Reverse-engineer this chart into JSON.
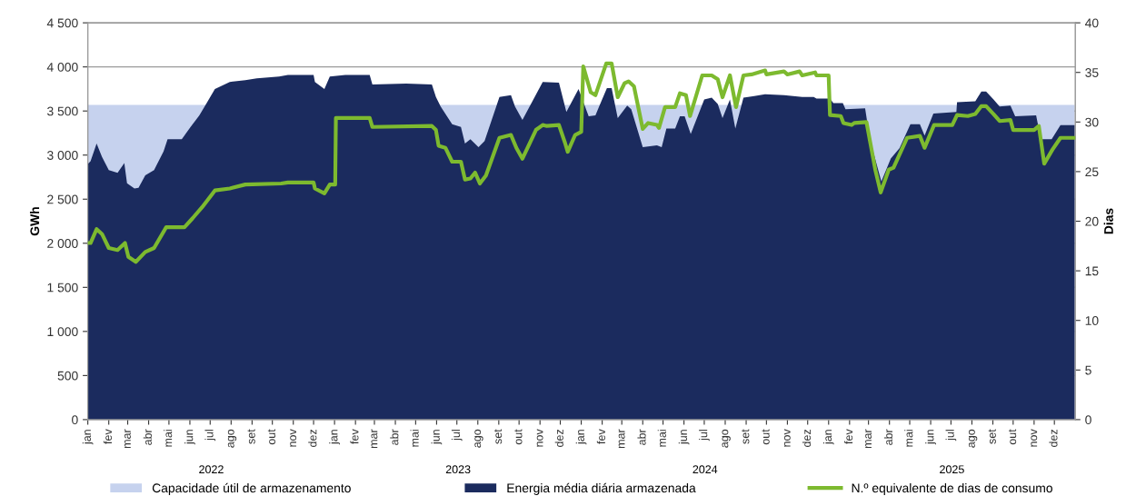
{
  "chart_data": {
    "type": "area",
    "ylabel": "GWh",
    "y2label": "Dias",
    "ylim": [
      0,
      4500
    ],
    "yticks": [
      0,
      {
        "value": 500,
        "label": "500"
      },
      {
        "value": 1000,
        "label": "1 000"
      },
      {
        "value": 1500,
        "label": "1 500"
      },
      {
        "value": 2000,
        "label": "2 000"
      },
      {
        "value": 2500,
        "label": "2 500"
      },
      {
        "value": 3000,
        "label": "3 000"
      },
      {
        "value": 3500,
        "label": "3 500"
      },
      {
        "value": 4000,
        "label": "4 000"
      },
      {
        "value": 4500,
        "label": "4 500"
      }
    ],
    "y2lim": [
      0,
      40
    ],
    "y2ticks": [
      0,
      5,
      10,
      15,
      20,
      25,
      30,
      35,
      40
    ],
    "xlim": [
      "2022-01-01",
      "2026-01-01"
    ],
    "xticks": [
      {
        "value": "2022-01-01",
        "label": "jan"
      },
      {
        "value": "2022-02-01",
        "label": "fev"
      },
      {
        "value": "2022-03-01",
        "label": "mar"
      },
      {
        "value": "2022-04-01",
        "label": "abr"
      },
      {
        "value": "2022-05-01",
        "label": "mai"
      },
      {
        "value": "2022-06-01",
        "label": "jun"
      },
      {
        "value": "2022-07-01",
        "label": "jul"
      },
      {
        "value": "2022-08-01",
        "label": "ago"
      },
      {
        "value": "2022-09-01",
        "label": "set"
      },
      {
        "value": "2022-10-01",
        "label": "out"
      },
      {
        "value": "2022-11-01",
        "label": "nov"
      },
      {
        "value": "2022-12-01",
        "label": "dez"
      },
      {
        "value": "2023-01-01",
        "label": "jan"
      },
      {
        "value": "2023-02-01",
        "label": "fev"
      },
      {
        "value": "2023-03-01",
        "label": "mar"
      },
      {
        "value": "2023-04-01",
        "label": "abr"
      },
      {
        "value": "2023-05-01",
        "label": "mai"
      },
      {
        "value": "2023-06-01",
        "label": "jun"
      },
      {
        "value": "2023-07-01",
        "label": "jul"
      },
      {
        "value": "2023-08-01",
        "label": "ago"
      },
      {
        "value": "2023-09-01",
        "label": "set"
      },
      {
        "value": "2023-10-01",
        "label": "out"
      },
      {
        "value": "2023-11-01",
        "label": "nov"
      },
      {
        "value": "2023-12-01",
        "label": "dez"
      },
      {
        "value": "2024-01-01",
        "label": "jan"
      },
      {
        "value": "2024-02-01",
        "label": "fev"
      },
      {
        "value": "2024-03-01",
        "label": "mar"
      },
      {
        "value": "2024-04-01",
        "label": "abr"
      },
      {
        "value": "2024-05-01",
        "label": "mai"
      },
      {
        "value": "2024-06-01",
        "label": "jun"
      },
      {
        "value": "2024-07-01",
        "label": "jul"
      },
      {
        "value": "2024-08-01",
        "label": "ago"
      },
      {
        "value": "2024-09-01",
        "label": "set"
      },
      {
        "value": "2024-10-01",
        "label": "out"
      },
      {
        "value": "2024-11-01",
        "label": "nov"
      },
      {
        "value": "2024-12-01",
        "label": "dez"
      },
      {
        "value": "2025-01-01",
        "label": "jan"
      },
      {
        "value": "2025-02-01",
        "label": "fev"
      },
      {
        "value": "2025-03-01",
        "label": "mar"
      },
      {
        "value": "2025-04-01",
        "label": "abr"
      },
      {
        "value": "2025-05-01",
        "label": "mai"
      },
      {
        "value": "2025-06-01",
        "label": "jun"
      },
      {
        "value": "2025-07-01",
        "label": "jul"
      },
      {
        "value": "2025-08-01",
        "label": "ago"
      },
      {
        "value": "2025-09-01",
        "label": "set"
      },
      {
        "value": "2025-10-01",
        "label": "out"
      },
      {
        "value": "2025-11-01",
        "label": "nov"
      },
      {
        "value": "2025-12-01",
        "label": "dez"
      }
    ],
    "annotations": [
      "2022",
      "2023",
      "2024",
      "2025"
    ],
    "grid": "y",
    "legend": "bottom",
    "series": [
      {
        "name": "Capacidade útil de armazenamento",
        "color": "#c6d2ee",
        "x": [
          "2022-01-01",
          "2025-12-31"
        ],
        "values": [
          3570,
          3570
        ]
      },
      {
        "name": "Energia média diária armazenada",
        "color": "#1b2b5e",
        "x": [
          "2022-01-01",
          "2022-01-05",
          "2022-01-14",
          "2022-01-22",
          "2022-02-01",
          "2022-02-14",
          "2022-02-24",
          "2022-02-28",
          "2022-03-11",
          "2022-03-17",
          "2022-03-27",
          "2022-04-09",
          "2022-04-23",
          "2022-04-29",
          "2022-05-20",
          "2022-06-02",
          "2022-06-15",
          "2022-06-25",
          "2022-07-08",
          "2022-07-30",
          "2022-08-22",
          "2022-09-08",
          "2022-10-11",
          "2022-10-24",
          "2022-12-01",
          "2022-12-03",
          "2022-12-17",
          "2022-12-25",
          "2023-01-17",
          "2023-02-22",
          "2023-02-26",
          "2023-04-17",
          "2023-05-25",
          "2023-05-31",
          "2023-06-07",
          "2023-06-24",
          "2023-07-07",
          "2023-07-13",
          "2023-07-21",
          "2023-08-02",
          "2023-08-11",
          "2023-09-02",
          "2023-09-19",
          "2023-09-25",
          "2023-10-06",
          "2023-11-05",
          "2023-11-29",
          "2023-12-10",
          "2023-12-28",
          "2024-01-12",
          "2024-01-22",
          "2024-01-28",
          "2024-02-08",
          "2024-02-15",
          "2024-02-24",
          "2024-03-09",
          "2024-03-15",
          "2024-04-01",
          "2024-04-22",
          "2024-04-29",
          "2024-05-06",
          "2024-05-19",
          "2024-05-26",
          "2024-06-02",
          "2024-06-11",
          "2024-07-01",
          "2024-07-12",
          "2024-07-21",
          "2024-07-28",
          "2024-08-08",
          "2024-08-16",
          "2024-08-28",
          "2024-09-13",
          "2024-09-29",
          "2024-10-27",
          "2024-11-23",
          "2024-12-10",
          "2024-12-14",
          "2025-01-03",
          "2025-01-08",
          "2025-01-22",
          "2025-01-26",
          "2025-02-24",
          "2025-03-03",
          "2025-03-20",
          "2025-04-03",
          "2025-04-16",
          "2025-05-02",
          "2025-05-16",
          "2025-05-23",
          "2025-06-05",
          "2025-07-09",
          "2025-07-10",
          "2025-08-06",
          "2025-08-15",
          "2025-08-22",
          "2025-09-02",
          "2025-09-11",
          "2025-09-27",
          "2025-10-04",
          "2025-11-04",
          "2025-11-11",
          "2025-11-27",
          "2025-12-10",
          "2025-12-31"
        ],
        "values": [
          2900,
          2930,
          3130,
          2980,
          2830,
          2800,
          2910,
          2680,
          2620,
          2630,
          2770,
          2830,
          3040,
          3180,
          3180,
          3320,
          3450,
          3580,
          3750,
          3830,
          3850,
          3870,
          3890,
          3910,
          3910,
          3830,
          3750,
          3890,
          3910,
          3910,
          3800,
          3810,
          3800,
          3660,
          3550,
          3350,
          3320,
          3130,
          3180,
          3090,
          3160,
          3660,
          3680,
          3550,
          3400,
          3830,
          3820,
          3490,
          3750,
          3440,
          3450,
          3560,
          3760,
          3760,
          3420,
          3560,
          3520,
          3090,
          3110,
          3090,
          3300,
          3300,
          3440,
          3440,
          3240,
          3630,
          3650,
          3580,
          3420,
          3630,
          3300,
          3650,
          3670,
          3690,
          3680,
          3660,
          3660,
          3640,
          3640,
          3590,
          3590,
          3520,
          3530,
          3180,
          2700,
          2960,
          3080,
          3350,
          3350,
          3220,
          3470,
          3490,
          3600,
          3610,
          3720,
          3720,
          3630,
          3550,
          3560,
          3440,
          3450,
          3180,
          3180,
          3340,
          3340
        ]
      },
      {
        "name": "N.º equivalente de dias de consumo",
        "type": "line",
        "axis": "y2",
        "color": "#7dba2f",
        "x": [
          "2022-01-01",
          "2022-01-05",
          "2022-01-14",
          "2022-01-22",
          "2022-02-01",
          "2022-02-14",
          "2022-02-25",
          "2022-03-02",
          "2022-03-13",
          "2022-03-27",
          "2022-04-09",
          "2022-04-27",
          "2022-05-24",
          "2022-06-05",
          "2022-06-19",
          "2022-07-08",
          "2022-07-30",
          "2022-08-22",
          "2022-10-14",
          "2022-10-24",
          "2022-12-01",
          "2022-12-03",
          "2022-12-17",
          "2022-12-25",
          "2023-01-02",
          "2023-01-03",
          "2023-02-22",
          "2023-02-26",
          "2023-05-25",
          "2023-05-31",
          "2023-06-04",
          "2023-06-14",
          "2023-06-24",
          "2023-07-07",
          "2023-07-13",
          "2023-07-21",
          "2023-07-28",
          "2023-08-04",
          "2023-08-13",
          "2023-09-02",
          "2023-09-19",
          "2023-09-27",
          "2023-10-06",
          "2023-10-26",
          "2023-11-05",
          "2023-11-11",
          "2023-11-29",
          "2023-12-08",
          "2023-12-12",
          "2023-12-23",
          "2024-01-01",
          "2024-01-04",
          "2024-01-15",
          "2024-01-22",
          "2024-02-07",
          "2024-02-15",
          "2024-02-24",
          "2024-03-05",
          "2024-03-11",
          "2024-03-19",
          "2024-04-01",
          "2024-04-09",
          "2024-04-22",
          "2024-04-25",
          "2024-05-04",
          "2024-05-19",
          "2024-05-26",
          "2024-06-04",
          "2024-06-10",
          "2024-06-28",
          "2024-07-12",
          "2024-07-21",
          "2024-07-28",
          "2024-08-08",
          "2024-08-17",
          "2024-08-28",
          "2024-09-09",
          "2024-09-29",
          "2024-10-01",
          "2024-10-27",
          "2024-11-01",
          "2024-11-19",
          "2024-11-23",
          "2024-12-12",
          "2024-12-14",
          "2025-01-01",
          "2025-01-03",
          "2025-01-19",
          "2025-01-23",
          "2025-02-04",
          "2025-02-08",
          "2025-02-26",
          "2025-03-11",
          "2025-03-19",
          "2025-03-31",
          "2025-04-07",
          "2025-04-27",
          "2025-05-16",
          "2025-05-23",
          "2025-06-06",
          "2025-07-03",
          "2025-07-10",
          "2025-07-26",
          "2025-08-06",
          "2025-08-15",
          "2025-08-22",
          "2025-09-02",
          "2025-09-11",
          "2025-09-27",
          "2025-10-01",
          "2025-11-01",
          "2025-11-08",
          "2025-11-16",
          "2025-11-28",
          "2025-12-10",
          "2025-12-31"
        ],
        "values": [
          17.8,
          17.8,
          19.2,
          18.7,
          17.3,
          17.1,
          17.8,
          16.4,
          15.9,
          16.9,
          17.3,
          19.4,
          19.4,
          20.3,
          21.4,
          23.1,
          23.3,
          23.7,
          23.8,
          23.9,
          23.9,
          23.3,
          22.8,
          23.7,
          23.7,
          30.4,
          30.4,
          29.5,
          29.6,
          29.2,
          27.6,
          27.4,
          26.0,
          26.0,
          24.2,
          24.3,
          24.9,
          23.8,
          24.6,
          28.4,
          28.7,
          27.4,
          26.3,
          29.2,
          29.7,
          29.6,
          29.7,
          27.9,
          27.0,
          28.7,
          29.0,
          35.6,
          33.0,
          32.7,
          35.9,
          35.9,
          32.5,
          33.9,
          34.1,
          33.6,
          29.3,
          29.9,
          29.7,
          29.4,
          31.5,
          31.5,
          32.9,
          32.7,
          30.6,
          34.7,
          34.7,
          34.3,
          32.5,
          34.7,
          31.5,
          34.7,
          34.8,
          35.2,
          34.8,
          35.1,
          34.8,
          35.1,
          34.7,
          35.0,
          34.7,
          34.7,
          30.7,
          30.6,
          29.9,
          29.7,
          29.9,
          30.0,
          25.2,
          22.9,
          25.2,
          25.4,
          28.4,
          28.6,
          27.4,
          29.7,
          29.7,
          30.7,
          30.6,
          30.8,
          31.6,
          31.6,
          30.8,
          30.1,
          30.2,
          29.2,
          29.2,
          29.6,
          25.8,
          27.2,
          28.4,
          28.4
        ]
      }
    ]
  }
}
